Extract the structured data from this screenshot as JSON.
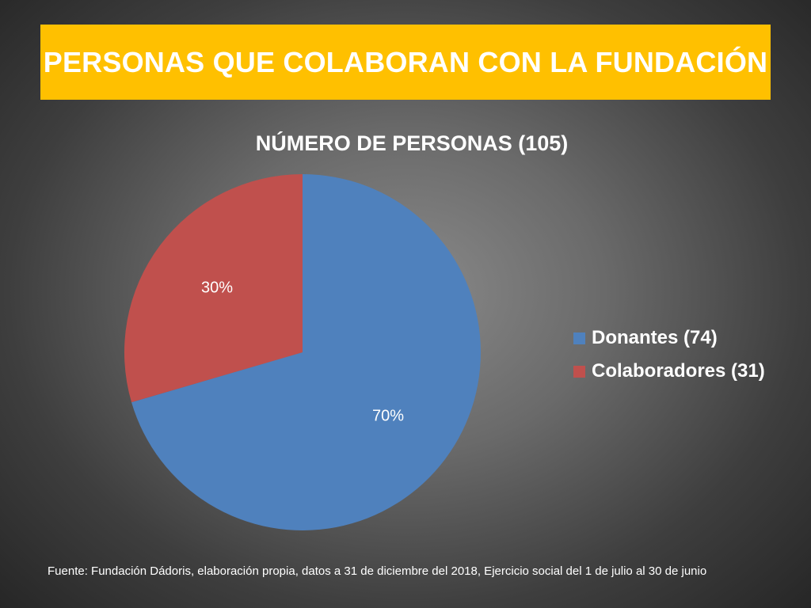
{
  "title": "PERSONAS QUE COLABORAN CON LA FUNDACIÓN",
  "footnote": "Fuente: Fundación Dádoris, elaboración propia, datos a 31 de diciembre del 2018, Ejercicio social del 1 de julio al 30 de junio",
  "colors": {
    "banner": "#ffc000",
    "donantes": "#4f81bd",
    "colaboradores": "#c0504d"
  },
  "chart_data": {
    "type": "pie",
    "title": "NÚMERO DE PERSONAS (105)",
    "legend_position": "right",
    "slices": [
      {
        "label": "Donantes (74)",
        "value": 74,
        "percent_label": "70%",
        "color": "#4f81bd"
      },
      {
        "label": "Colaboradores (31)",
        "value": 31,
        "percent_label": "30%",
        "color": "#c0504d"
      }
    ]
  }
}
